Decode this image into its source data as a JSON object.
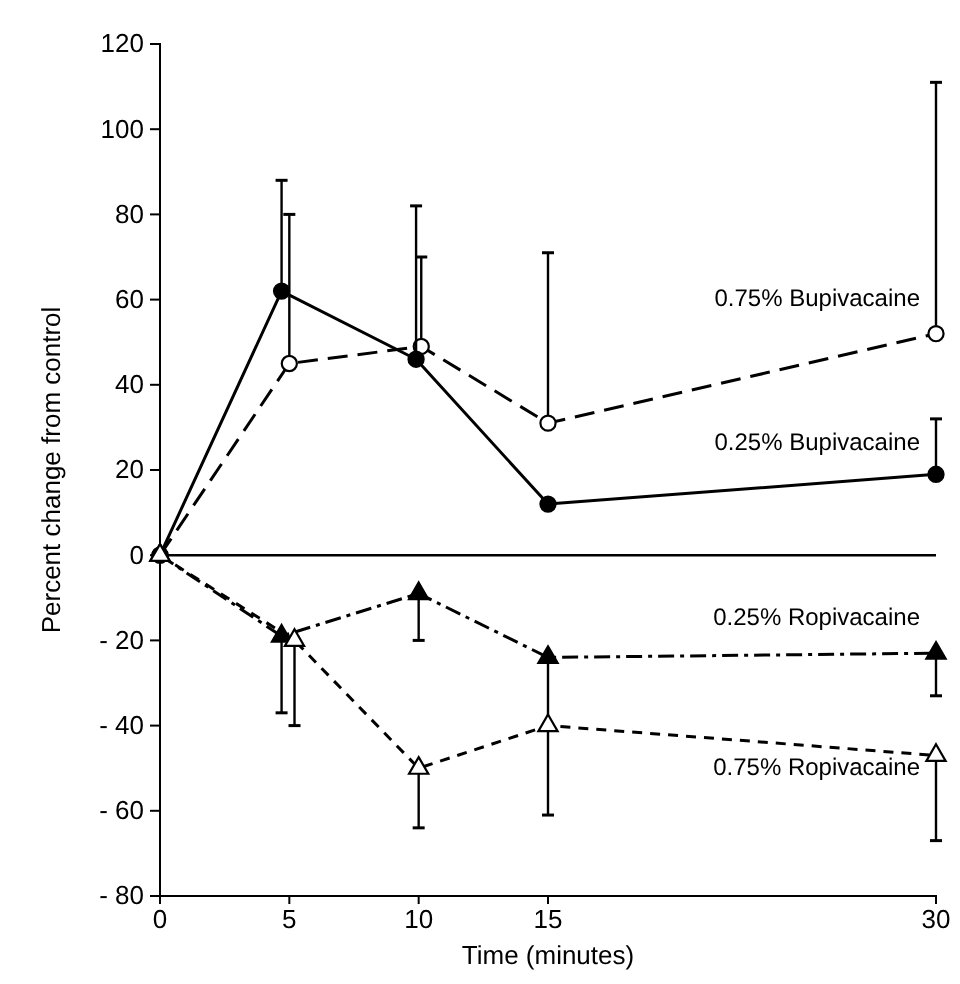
{
  "chart_data": {
    "type": "line",
    "xlabel": "Time (minutes)",
    "ylabel": "Percent change from control",
    "xlim": [
      0,
      30
    ],
    "xticks": [
      0,
      5,
      10,
      15,
      30
    ],
    "ylim": [
      -80,
      120
    ],
    "yticks": [
      120,
      100,
      80,
      60,
      40,
      20,
      0,
      {
        "value": -20,
        "label": "- 20"
      },
      {
        "value": -40,
        "label": "- 40"
      },
      {
        "value": -60,
        "label": "- 60"
      },
      {
        "value": -80,
        "label": "- 80"
      }
    ],
    "grid": false,
    "legend": false,
    "ref_lines": [
      {
        "axis": "y",
        "value": 0,
        "color": "#000000"
      }
    ],
    "series": [
      {
        "name": "0.75% Bupivacaine",
        "color": "#000000",
        "marker": "circle",
        "line_style": "longdash",
        "x": [
          0,
          5,
          10.1,
          15,
          30
        ],
        "values": [
          0,
          45,
          49,
          31,
          52
        ],
        "errors": [
          null,
          [
            45,
            80
          ],
          [
            49,
            70
          ],
          [
            31,
            71
          ],
          [
            52,
            111
          ]
        ]
      },
      {
        "name": "0.25% Bupivacaine",
        "color": "#000000",
        "marker": "circle",
        "line_style": "solid",
        "x": [
          0,
          4.7,
          9.9,
          15,
          30
        ],
        "values": [
          0,
          62,
          46,
          12,
          19
        ],
        "errors": [
          null,
          [
            62,
            88
          ],
          [
            46,
            82
          ],
          null,
          [
            19,
            32
          ]
        ]
      },
      {
        "name": "0.25% Ropivacaine",
        "color": "#000000",
        "marker": "triangle",
        "line_style": "dashdot",
        "x": [
          0,
          4.7,
          10,
          15,
          30
        ],
        "values": [
          0,
          -19,
          -9,
          -24,
          -23
        ],
        "errors": [
          null,
          [
            -37,
            -19
          ],
          [
            -20,
            -9
          ],
          [
            -40,
            -24
          ],
          [
            -33,
            -23
          ]
        ]
      },
      {
        "name": "0.75% Ropivacaine",
        "color": "#000000",
        "marker": "triangle",
        "line_style": "dashed",
        "x": [
          0,
          5.2,
          10,
          15,
          30
        ],
        "values": [
          0,
          -20,
          -50,
          -40,
          -47
        ],
        "errors": [
          null,
          [
            -40,
            -20
          ],
          [
            -64,
            -50
          ],
          [
            -61,
            -40
          ],
          [
            -67,
            -47
          ]
        ]
      }
    ]
  }
}
